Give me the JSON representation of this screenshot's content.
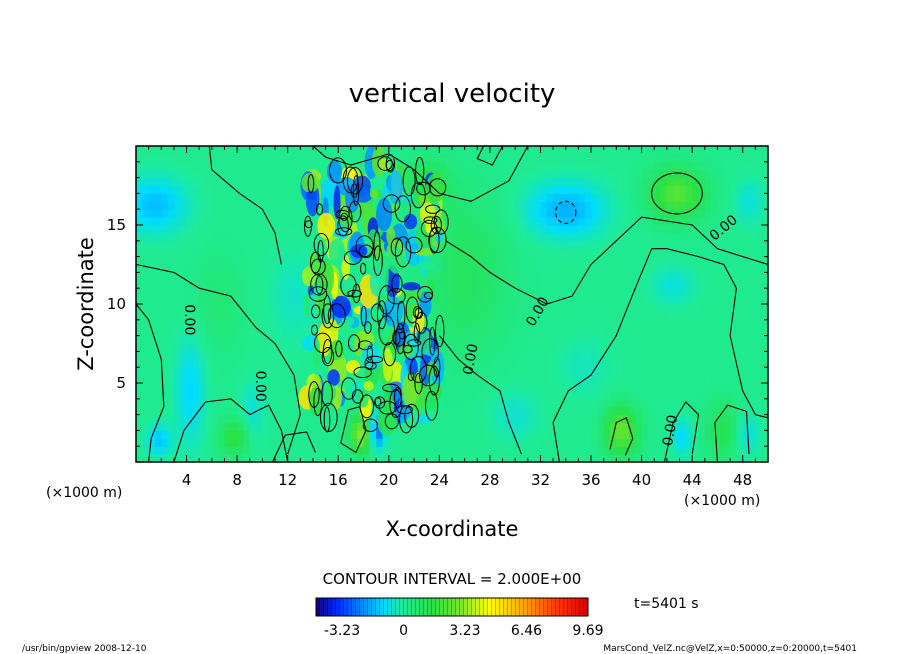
{
  "chart_data": {
    "type": "heatmap",
    "title": "vertical velocity",
    "xlabel": "X-coordinate",
    "ylabel": "Z-coordinate",
    "x_unit_left": "(×1000 m)",
    "x_unit_right": "(×1000 m)",
    "xlim": [
      0,
      50
    ],
    "ylim": [
      0,
      20
    ],
    "x_ticks": [
      4,
      8,
      12,
      16,
      20,
      24,
      28,
      32,
      36,
      40,
      44,
      48
    ],
    "y_ticks": [
      5,
      10,
      15
    ],
    "contour_interval_label": "CONTOUR INTERVAL = 2.000E+00",
    "contour_labels": [
      {
        "text": "0.00",
        "x": 4.2,
        "y": 9.0,
        "rot": 90
      },
      {
        "text": "0.00",
        "x": 9.8,
        "y": 4.8,
        "rot": 90
      },
      {
        "text": "0.00",
        "x": 26.5,
        "y": 6.5,
        "rot": -80
      },
      {
        "text": "0.00",
        "x": 31.8,
        "y": 9.5,
        "rot": -60
      },
      {
        "text": "0.00",
        "x": 46.5,
        "y": 14.8,
        "rot": -40
      },
      {
        "text": "0.00",
        "x": 42.3,
        "y": 2.0,
        "rot": -80
      }
    ],
    "colorbar": {
      "min": -4.6,
      "max": 9.69,
      "tick_values": [
        -3.23,
        0,
        3.23,
        6.46,
        9.69
      ],
      "tick_labels": [
        "-3.23",
        "0",
        "3.23",
        "6.46",
        "9.69"
      ]
    },
    "field_features": [
      {
        "kind": "updraft",
        "x": 42.8,
        "y": 17.0,
        "value": 3.5
      },
      {
        "kind": "downdraft",
        "x": 1.2,
        "y": 16.3,
        "value": -3.0
      },
      {
        "kind": "downdraft",
        "x": 34.0,
        "y": 15.8,
        "value": -3.2
      },
      {
        "kind": "downdraft",
        "x": 42.5,
        "y": 11.2,
        "value": -1.5
      },
      {
        "kind": "updraft",
        "x": 38.4,
        "y": 2.0,
        "value": 4.0
      },
      {
        "kind": "updraft",
        "x": 17.8,
        "y": 1.8,
        "value": 4.5
      },
      {
        "kind": "downdraft",
        "x": 19.0,
        "y": 2.2,
        "value": -3.5
      },
      {
        "kind": "updraft",
        "x": 7.8,
        "y": 1.8,
        "value": 2.5
      },
      {
        "kind": "downdraft",
        "x": 1.8,
        "y": 1.4,
        "value": -2.5
      }
    ]
  },
  "time_label": "t=5401 s",
  "footer_left": "/usr/bin/gpview   2008-12-10",
  "footer_right": "MarsCond_VelZ.nc@VelZ,x=0:50000,z=0:20000,t=5401",
  "colors": {
    "background_field": "#00f090",
    "negative_strong": "#0030ff",
    "positive_strong": "#ffff00",
    "contour": "#000000"
  }
}
